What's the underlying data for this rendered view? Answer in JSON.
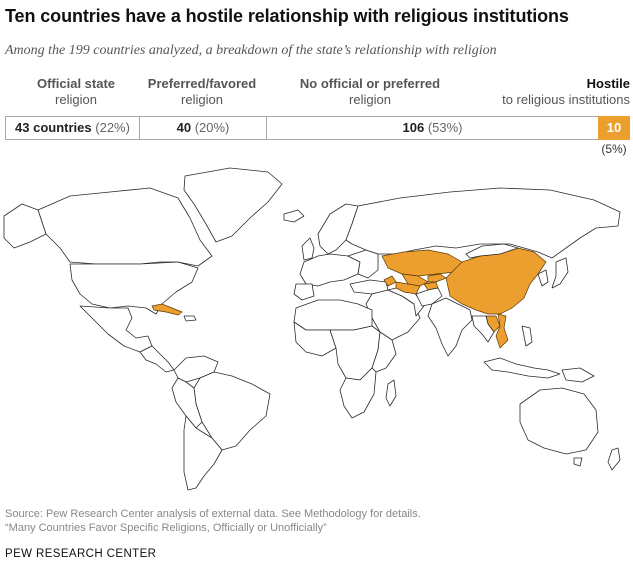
{
  "header": {
    "title": "Ten countries have a hostile relationship with religious institutions",
    "subtitle": "Among the 199 countries analyzed, a breakdown of the state’s relationship with religion"
  },
  "categories": [
    {
      "heading": "Official state",
      "subheading": "religion",
      "count_label": "43 countries",
      "percent_label": "(22%)"
    },
    {
      "heading": "Preferred/favored",
      "subheading": "religion",
      "count_label": "40",
      "percent_label": "(20%)"
    },
    {
      "heading": "No official or preferred",
      "subheading": "religion",
      "count_label": "106",
      "percent_label": "(53%)"
    },
    {
      "heading": "Hostile",
      "subheading": "to religious institutions",
      "count_label": "10",
      "percent_label": "(5%)"
    }
  ],
  "map": {
    "highlight_color": "#ec9f2e",
    "base_color": "#ffffff",
    "highlighted_regions": [
      "Cuba",
      "Kazakhstan",
      "Uzbekistan",
      "Turkmenistan",
      "Kyrgyzstan",
      "Tajikistan",
      "Azerbaijan",
      "China",
      "Laos",
      "Vietnam"
    ]
  },
  "source": {
    "line1": "Source: Pew Research Center analysis of external data. See Methodology for details.",
    "line2": "“Many Countries Favor Specific Religions, Officially or Unofficially”"
  },
  "footer": {
    "org": "PEW RESEARCH CENTER"
  }
}
